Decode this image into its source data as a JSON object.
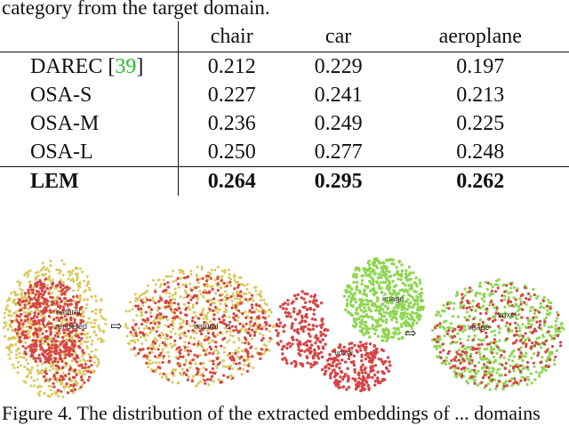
{
  "caption_top": "category from the target domain.",
  "table": {
    "headers": [
      "",
      "chair",
      "car",
      "aeroplane"
    ],
    "rows": [
      {
        "method": "DAREC",
        "cite": "39",
        "chair": "0.212",
        "car": "0.229",
        "aeroplane": "0.197"
      },
      {
        "method": "OSA-S",
        "chair": "0.227",
        "car": "0.241",
        "aeroplane": "0.213"
      },
      {
        "method": "OSA-M",
        "chair": "0.236",
        "car": "0.249",
        "aeroplane": "0.225"
      },
      {
        "method": "OSA-L",
        "chair": "0.250",
        "car": "0.277",
        "aeroplane": "0.248"
      },
      {
        "method": "LEM",
        "chair": "0.264",
        "car": "0.295",
        "aeroplane": "0.262"
      }
    ]
  },
  "figure": {
    "panels": [
      {
        "labels": [
          "natural",
          "rendered"
        ]
      },
      {
        "labels": [
          "natural",
          "d"
        ]
      },
      {
        "labels": [
          "image",
          "voxel"
        ]
      },
      {
        "labels": [
          "voxel",
          "image"
        ]
      }
    ],
    "arrow": "⇨",
    "colors": {
      "natural": "#d9c85a",
      "rendered": "#d64545",
      "image": "#8ed651",
      "voxel": "#d64545"
    }
  },
  "caption_bottom": "Figure 4. The distribution of the extracted embeddings of ... domains"
}
